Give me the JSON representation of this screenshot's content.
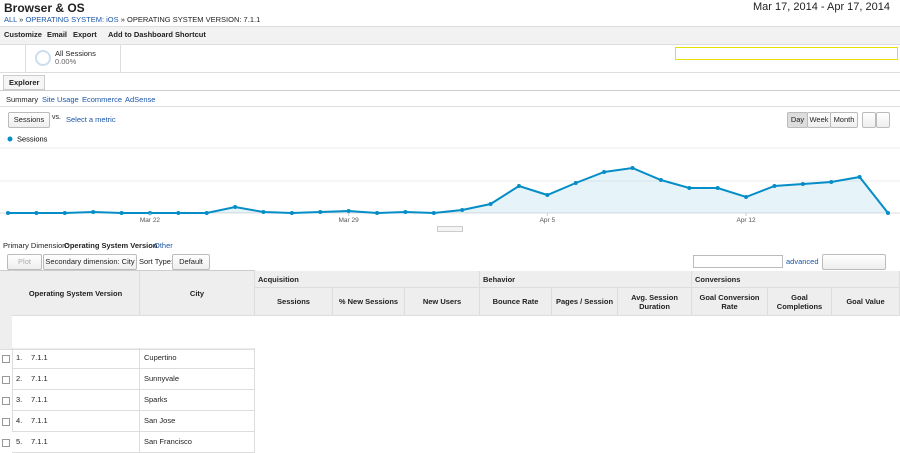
{
  "header": {
    "title": "Browser & OS",
    "date_range": "Mar 17, 2014 - Apr 17, 2014",
    "breadcrumb": [
      "ALL",
      "OPERATING SYSTEM: iOS",
      "OPERATING SYSTEM VERSION: 7.1.1"
    ],
    "separator": "»"
  },
  "toolbar": [
    "Customize",
    "Email",
    "Export",
    "Add to Dashboard",
    "Shortcut"
  ],
  "segment": {
    "name": "All Sessions",
    "value": "0.00%"
  },
  "tab": "Explorer",
  "subtabs": [
    "Summary",
    "Site Usage",
    "Ecommerce",
    "AdSense"
  ],
  "metric_bar": {
    "metric": "Sessions",
    "vs": "vs.",
    "select": "Select a metric",
    "periods": [
      "Day",
      "Week",
      "Month"
    ]
  },
  "chart_data": {
    "type": "line",
    "series": [
      {
        "name": "Sessions",
        "color": "#058dc7",
        "values": [
          0,
          0,
          0,
          1,
          0,
          0,
          0,
          0,
          6,
          1,
          0,
          1,
          2,
          0,
          1,
          0,
          3,
          9,
          27,
          18,
          30,
          41,
          45,
          33,
          25,
          25,
          16,
          27,
          29,
          31,
          36,
          0
        ]
      }
    ],
    "categories": [
      null,
      null,
      null,
      null,
      null,
      "Mar 22",
      null,
      null,
      null,
      null,
      null,
      null,
      "Mar 29",
      null,
      null,
      null,
      null,
      null,
      null,
      "Apr 5",
      null,
      null,
      null,
      null,
      null,
      null,
      "Apr 12",
      null,
      null,
      null,
      null,
      null
    ]
  },
  "dimension": {
    "label": "Primary Dimension:",
    "value": "Operating System Version",
    "other": "Other"
  },
  "controls": {
    "plot_rows": "Plot Rows",
    "secondary": "Secondary dimension: City",
    "sort_label": "Sort Type:",
    "sort": "Default",
    "advanced": "advanced"
  },
  "table": {
    "groups": [
      "Acquisition",
      "Behavior",
      "Conversions"
    ],
    "columns": [
      "Operating System Version",
      "City",
      "Sessions",
      "% New Sessions",
      "New Users",
      "Bounce Rate",
      "Pages / Session",
      "Avg. Session Duration",
      "Goal Conversion Rate",
      "Goal Completions",
      "Goal Value"
    ],
    "rows": [
      [
        "1.",
        "7.1.1",
        "Cupertino"
      ],
      [
        "2.",
        "7.1.1",
        "Sunnyvale"
      ],
      [
        "3.",
        "7.1.1",
        "Sparks"
      ],
      [
        "4.",
        "7.1.1",
        "San Jose"
      ],
      [
        "5.",
        "7.1.1",
        "San Francisco"
      ]
    ]
  }
}
